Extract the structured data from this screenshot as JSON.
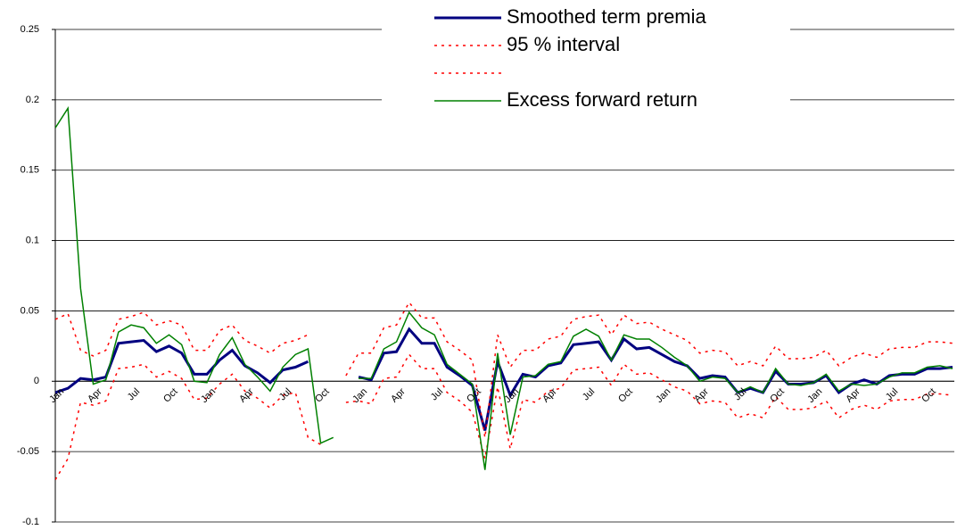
{
  "chart_data": {
    "type": "line",
    "categories": [
      "Jan",
      null,
      null,
      "Apr",
      null,
      null,
      "Jul",
      null,
      null,
      "Oct",
      null,
      null,
      "Jan",
      null,
      null,
      "Apr",
      null,
      null,
      "Jul",
      null,
      null,
      "Oct",
      null,
      null,
      "Jan",
      null,
      null,
      "Apr",
      null,
      null,
      "Jul",
      null,
      null,
      "Oct",
      null,
      null,
      "Jan",
      null,
      null,
      "Apr",
      null,
      null,
      "Jul",
      null,
      null,
      "Oct",
      null,
      null,
      "Jan",
      null,
      null,
      "Apr",
      null,
      null,
      "Jul",
      null,
      null,
      "Oct",
      null,
      null,
      "Jan",
      null,
      null,
      "Apr",
      null,
      null,
      "Jul",
      null,
      null,
      "Oct",
      null,
      null
    ],
    "ylim": [
      -0.1,
      0.25
    ],
    "yticks": [
      -0.1,
      -0.05,
      0,
      0.05,
      0.1,
      0.15,
      0.2,
      0.25
    ],
    "grid": true,
    "series": [
      {
        "name": "Smoothed term premia",
        "color": "#000080",
        "width": 3,
        "dash": "solid",
        "values": [
          -0.008,
          -0.005,
          0.002,
          0.001,
          0.003,
          0.027,
          0.028,
          0.029,
          0.021,
          0.025,
          0.02,
          0.005,
          0.005,
          0.015,
          0.022,
          0.011,
          0.006,
          -0.001,
          0.008,
          0.01,
          0.014,
          null,
          null,
          null,
          0.003,
          0.001,
          0.02,
          0.021,
          0.037,
          0.027,
          0.027,
          0.01,
          0.004,
          -0.003,
          -0.035,
          0.014,
          -0.01,
          0.005,
          0.003,
          0.011,
          0.013,
          0.026,
          0.027,
          0.028,
          0.015,
          0.03,
          0.023,
          0.024,
          0.019,
          0.014,
          0.011,
          0.002,
          0.004,
          0.003,
          -0.008,
          -0.005,
          -0.008,
          0.007,
          -0.002,
          -0.002,
          -0.001,
          0.004,
          -0.008,
          -0.002,
          0.001,
          -0.002,
          0.004,
          0.005,
          0.005,
          0.009,
          0.009,
          0.01
        ]
      },
      {
        "name": "95 % interval",
        "color": "#ff0000",
        "width": 1.5,
        "dash": "dotted",
        "values": [
          0.044,
          0.048,
          0.022,
          0.018,
          0.022,
          0.044,
          0.046,
          0.049,
          0.04,
          0.043,
          0.04,
          0.022,
          0.022,
          0.036,
          0.04,
          0.029,
          0.025,
          0.02,
          0.027,
          0.029,
          0.033,
          null,
          null,
          0.004,
          0.02,
          0.02,
          0.038,
          0.04,
          0.056,
          0.045,
          0.045,
          0.028,
          0.022,
          0.015,
          -0.04,
          0.033,
          0.01,
          0.022,
          0.022,
          0.03,
          0.032,
          0.044,
          0.046,
          0.047,
          0.033,
          0.047,
          0.041,
          0.042,
          0.037,
          0.033,
          0.029,
          0.02,
          0.022,
          0.021,
          0.011,
          0.014,
          0.011,
          0.025,
          0.016,
          0.016,
          0.017,
          0.022,
          0.011,
          0.017,
          0.02,
          0.017,
          0.023,
          0.024,
          0.024,
          0.028,
          0.028,
          0.027
        ]
      },
      {
        "name": null,
        "color": "#ff0000",
        "width": 1.5,
        "dash": "dotted",
        "values": [
          -0.07,
          -0.055,
          -0.015,
          -0.017,
          -0.014,
          0.009,
          0.01,
          0.012,
          0.003,
          0.007,
          0.002,
          -0.013,
          -0.012,
          -0.002,
          0.005,
          -0.007,
          -0.012,
          -0.019,
          -0.01,
          -0.008,
          -0.04,
          -0.045,
          null,
          -0.015,
          -0.014,
          -0.016,
          0.002,
          0.003,
          0.019,
          0.009,
          0.009,
          -0.008,
          -0.014,
          -0.022,
          -0.055,
          -0.004,
          -0.048,
          -0.013,
          -0.015,
          -0.007,
          -0.005,
          0.008,
          0.009,
          0.01,
          -0.003,
          0.012,
          0.005,
          0.006,
          0.001,
          -0.004,
          -0.007,
          -0.016,
          -0.014,
          -0.015,
          -0.026,
          -0.023,
          -0.026,
          -0.011,
          -0.02,
          -0.02,
          -0.019,
          -0.014,
          -0.026,
          -0.02,
          -0.017,
          -0.02,
          -0.014,
          -0.013,
          -0.013,
          -0.009,
          -0.009,
          -0.01
        ]
      },
      {
        "name": "Excess forward return",
        "color": "#008000",
        "width": 1.5,
        "dash": "solid",
        "values": [
          0.18,
          0.194,
          0.066,
          -0.002,
          0.001,
          0.035,
          0.04,
          0.038,
          0.027,
          0.033,
          0.026,
          0.0,
          -0.001,
          0.019,
          0.031,
          0.012,
          0.003,
          -0.007,
          0.01,
          0.019,
          0.023,
          -0.044,
          -0.04,
          null,
          0.002,
          0.002,
          0.023,
          0.028,
          0.049,
          0.038,
          0.033,
          0.012,
          0.005,
          -0.002,
          -0.063,
          0.02,
          -0.038,
          0.003,
          0.004,
          0.012,
          0.014,
          0.032,
          0.037,
          0.032,
          0.015,
          0.033,
          0.03,
          0.03,
          0.024,
          0.017,
          0.011,
          0.0,
          0.003,
          0.002,
          -0.008,
          -0.004,
          -0.008,
          0.009,
          -0.002,
          -0.003,
          -0.001,
          0.005,
          -0.007,
          -0.002,
          -0.003,
          -0.002,
          0.003,
          0.006,
          0.006,
          0.01,
          0.011,
          0.009
        ]
      }
    ]
  }
}
